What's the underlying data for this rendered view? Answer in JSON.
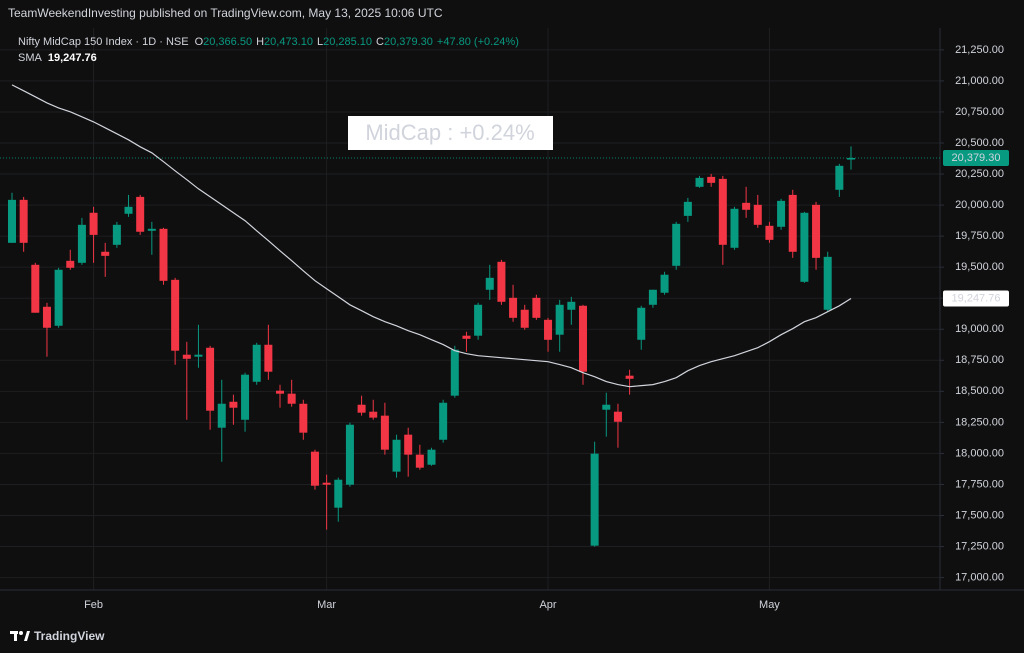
{
  "chart_data": {
    "type": "candlestick",
    "source": "TeamWeekendInvesting published on TradingView.com, May 13, 2025 10:06 UTC",
    "symbol": "Nifty MidCap 150 Index · 1D · NSE",
    "legend_values": [
      {
        "label": "O",
        "value": "20,366.50"
      },
      {
        "label": "H",
        "value": "20,473.10"
      },
      {
        "label": "L",
        "value": "20,285.10"
      },
      {
        "label": "C",
        "value": "20,379.30"
      }
    ],
    "change": "+47.80 (+0.24%)",
    "annotation": "MidCap : +0.24%",
    "last_price_label": "20,379.30",
    "footer": "TradingView",
    "up_color": "#089981",
    "down_color": "#f23645",
    "categories": [
      null,
      null,
      null,
      null,
      null,
      null,
      null,
      "Feb",
      null,
      null,
      null,
      null,
      null,
      null,
      null,
      null,
      null,
      null,
      null,
      null,
      null,
      null,
      null,
      null,
      null,
      null,
      null,
      "Mar",
      null,
      null,
      null,
      null,
      null,
      null,
      null,
      null,
      null,
      null,
      null,
      null,
      null,
      null,
      null,
      null,
      null,
      null,
      "Apr",
      null,
      null,
      null,
      null,
      null,
      null,
      null,
      null,
      null,
      null,
      null,
      null,
      null,
      null,
      null,
      null,
      null,
      null,
      "May",
      null,
      null,
      null,
      null,
      null,
      null,
      null
    ],
    "open": [
      19696,
      20042,
      19519,
      19181,
      19028,
      19551,
      19535,
      19938,
      19624,
      19680,
      19930,
      20066,
      19793,
      19809,
      19398,
      18795,
      18779,
      18851,
      18207,
      18416,
      18271,
      18577,
      18875,
      18505,
      18481,
      18400,
      18014,
      17764,
      17563,
      17748,
      18392,
      18336,
      18304,
      17853,
      18151,
      17990,
      17909,
      18110,
      18465,
      18948,
      18948,
      19318,
      19543,
      19253,
      19157,
      19253,
      19076,
      18956,
      19157,
      19189,
      17257,
      18352,
      18336,
      18626,
      18915,
      19197,
      19294,
      19511,
      19913,
      20147,
      20227,
      20211,
      19656,
      20018,
      20002,
      19833,
      19825,
      20082,
      19382,
      20002,
      19157,
      20123,
      20366.5
    ],
    "high": [
      20099,
      20066,
      19535,
      19213,
      19495,
      19640,
      19897,
      19986,
      19696,
      19865,
      20082,
      20082,
      19865,
      19817,
      19414,
      18899,
      19036,
      18867,
      18593,
      18473,
      18650,
      18891,
      19036,
      18553,
      18593,
      18432,
      18030,
      17829,
      17805,
      18247,
      18465,
      18432,
      18408,
      18151,
      18207,
      18070,
      18046,
      18432,
      18867,
      18980,
      19213,
      19519,
      19559,
      19358,
      19197,
      19278,
      19092,
      19237,
      19261,
      19197,
      18094,
      18489,
      18400,
      18674,
      19189,
      19318,
      19463,
      19865,
      20058,
      20235,
      20251,
      20235,
      19986,
      20147,
      20082,
      19865,
      20050,
      20123,
      19946,
      20026,
      19624,
      20332,
      20473.1
    ],
    "low": [
      19696,
      19624,
      19133,
      18779,
      19012,
      19479,
      19519,
      19535,
      19422,
      19656,
      19905,
      19760,
      19600,
      19358,
      18714,
      18271,
      18690,
      18191,
      17933,
      18231,
      18175,
      18553,
      18593,
      18368,
      18376,
      18110,
      17708,
      17386,
      17450,
      17732,
      18304,
      18271,
      17990,
      17805,
      17813,
      17869,
      17901,
      18086,
      18449,
      18819,
      18915,
      19237,
      19197,
      19060,
      18996,
      19076,
      18819,
      18819,
      19036,
      18553,
      17249,
      18135,
      18046,
      18473,
      18835,
      19173,
      19278,
      19479,
      19865,
      20139,
      20147,
      19519,
      19640,
      19897,
      19817,
      19696,
      19801,
      19575,
      19374,
      19479,
      19141,
      20066,
      20285.1
    ],
    "close": [
      20042,
      19696,
      19133,
      19012,
      19479,
      19495,
      19841,
      19760,
      19591,
      19841,
      19986,
      19785,
      19809,
      19390,
      18827,
      18762,
      18795,
      18344,
      18400,
      18368,
      18634,
      18875,
      18658,
      18481,
      18400,
      18167,
      17740,
      17748,
      17788,
      18231,
      18328,
      18288,
      18030,
      18110,
      17990,
      17885,
      18030,
      18408,
      18835,
      18923,
      19197,
      19414,
      19221,
      19092,
      19012,
      19092,
      18915,
      19197,
      19221,
      18658,
      17998,
      18392,
      18255,
      18601,
      19173,
      19318,
      19439,
      19849,
      20026,
      20219,
      20179,
      19680,
      19970,
      19962,
      19841,
      19720,
      20034,
      19624,
      19938,
      19575,
      19583,
      20316,
      20379.3
    ],
    "sma": {
      "name": "SMA",
      "color": "#d1d4dc",
      "last_label": "19,247.76",
      "values": [
        20968,
        20920,
        20872,
        20823,
        20783,
        20751,
        20711,
        20670,
        20622,
        20574,
        20526,
        20469,
        20421,
        20349,
        20276,
        20204,
        20131,
        20067,
        20002,
        19938,
        19874,
        19793,
        19713,
        19632,
        19552,
        19471,
        19391,
        19326,
        19262,
        19197,
        19149,
        19101,
        19061,
        19028,
        18988,
        18956,
        18916,
        18876,
        18827,
        18803,
        18787,
        18779,
        18771,
        18763,
        18755,
        18747,
        18739,
        18715,
        18690,
        18650,
        18618,
        18578,
        18554,
        18537,
        18546,
        18554,
        18578,
        18610,
        18666,
        18707,
        18739,
        18763,
        18787,
        18819,
        18851,
        18900,
        18956,
        19004,
        19061,
        19093,
        19141,
        19189,
        19247.76
      ]
    },
    "ylim": [
      16900,
      21410
    ],
    "yticks": [
      {
        "value": 17000,
        "label": "17,000.00"
      },
      {
        "value": 17250,
        "label": "17,250.00"
      },
      {
        "value": 17500,
        "label": "17,500.00"
      },
      {
        "value": 17750,
        "label": "17,750.00"
      },
      {
        "value": 18000,
        "label": "18,000.00"
      },
      {
        "value": 18250,
        "label": "18,250.00"
      },
      {
        "value": 18500,
        "label": "18,500.00"
      },
      {
        "value": 18750,
        "label": "18,750.00"
      },
      {
        "value": 19000,
        "label": "19,000.00"
      },
      {
        "value": 19250,
        "label": "19,250.00"
      },
      {
        "value": 19500,
        "label": "19,500.00"
      },
      {
        "value": 19750,
        "label": "19,750.00"
      },
      {
        "value": 20000,
        "label": "20,000.00"
      },
      {
        "value": 20250,
        "label": "20,250.00"
      },
      {
        "value": 20500,
        "label": "20,500.00"
      },
      {
        "value": 20750,
        "label": "20,750.00"
      },
      {
        "value": 21000,
        "label": "21,000.00"
      },
      {
        "value": 21250,
        "label": "21,250.00"
      }
    ],
    "grid": true
  }
}
